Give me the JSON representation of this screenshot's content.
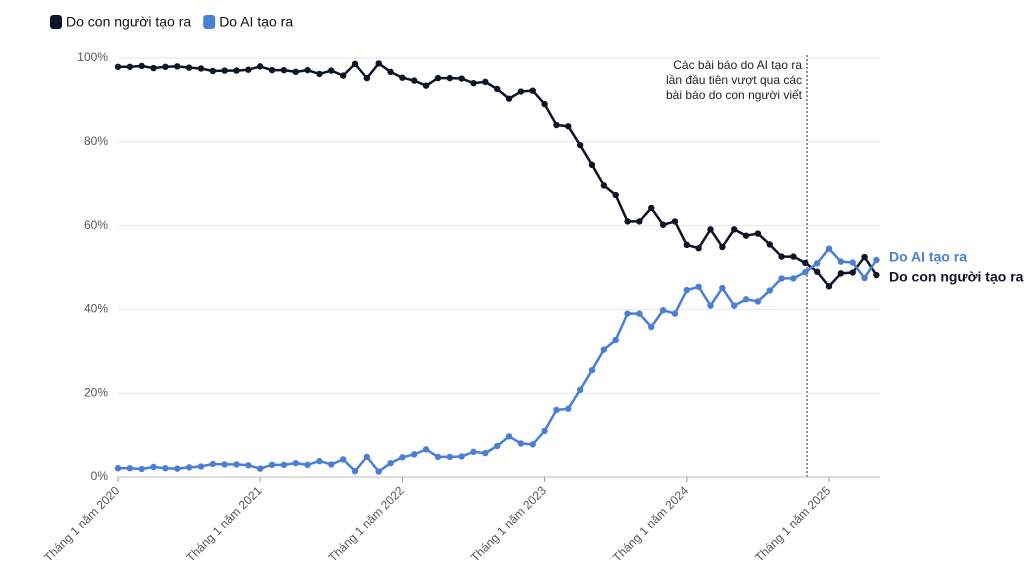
{
  "chart_data": {
    "type": "line",
    "categories": [
      "Tháng 1 năm 2020",
      null,
      null,
      null,
      null,
      null,
      null,
      null,
      null,
      null,
      null,
      null,
      "Tháng 1 năm 2021",
      null,
      null,
      null,
      null,
      null,
      null,
      null,
      null,
      null,
      null,
      null,
      "Tháng 1 năm 2022",
      null,
      null,
      null,
      null,
      null,
      null,
      null,
      null,
      null,
      null,
      null,
      "Tháng 1 năm 2023",
      null,
      null,
      null,
      null,
      null,
      null,
      null,
      null,
      null,
      null,
      null,
      "Tháng 1 năm 2024",
      null,
      null,
      null,
      null,
      null,
      null,
      null,
      null,
      null,
      null,
      null,
      "Tháng 1 năm 2025",
      null,
      null,
      null,
      null
    ],
    "series": [
      {
        "name": "Do con người tạo ra",
        "color": "#0f1426",
        "values": [
          97.9,
          97.9,
          98.1,
          97.6,
          97.9,
          98.0,
          97.7,
          97.5,
          96.9,
          97.0,
          97.0,
          97.2,
          98.0,
          97.1,
          97.1,
          96.7,
          97.1,
          96.2,
          97.0,
          95.8,
          98.6,
          95.2,
          98.7,
          96.7,
          95.3,
          94.6,
          93.4,
          95.2,
          95.2,
          95.1,
          94.0,
          94.3,
          92.6,
          90.3,
          92.0,
          92.2,
          89.0,
          84.0,
          83.7,
          79.2,
          74.5,
          69.6,
          67.3,
          61.0,
          61.0,
          64.2,
          60.2,
          61.0,
          55.4,
          54.6,
          59.1,
          54.9,
          59.1,
          57.6,
          58.1,
          55.5,
          52.6,
          52.6,
          51.1,
          49.0,
          45.5,
          48.6,
          48.8,
          52.5,
          48.2
        ]
      },
      {
        "name": "Do AI tạo ra",
        "color": "#4a7fd6",
        "values": [
          2.1,
          2.1,
          1.9,
          2.4,
          2.1,
          2.0,
          2.3,
          2.5,
          3.1,
          3.0,
          3.0,
          2.8,
          2.0,
          2.9,
          2.9,
          3.3,
          2.9,
          3.8,
          3.0,
          4.2,
          1.4,
          4.8,
          1.3,
          3.3,
          4.7,
          5.4,
          6.6,
          4.8,
          4.8,
          4.9,
          6.0,
          5.7,
          7.4,
          9.7,
          8.0,
          7.8,
          11.0,
          16.0,
          16.3,
          20.8,
          25.5,
          30.4,
          32.7,
          39.0,
          39.0,
          35.8,
          39.8,
          39.0,
          44.6,
          45.4,
          40.9,
          45.1,
          40.9,
          42.4,
          41.9,
          44.5,
          47.4,
          47.4,
          48.9,
          51.0,
          54.5,
          51.4,
          51.2,
          47.5,
          51.8
        ]
      }
    ],
    "ylim": [
      0,
      100
    ],
    "yticks": [
      {
        "value": 0,
        "label": "0%"
      },
      {
        "value": 20,
        "label": "20%"
      },
      {
        "value": 40,
        "label": "40%"
      },
      {
        "value": 60,
        "label": "60%"
      },
      {
        "value": 80,
        "label": "80%"
      },
      {
        "value": 100,
        "label": "100%"
      }
    ],
    "grid": true,
    "annotation": [
      "Các bài báo do AI tạo ra",
      "lần đầu tiên vượt qua các",
      "bài báo do con người viết"
    ]
  }
}
